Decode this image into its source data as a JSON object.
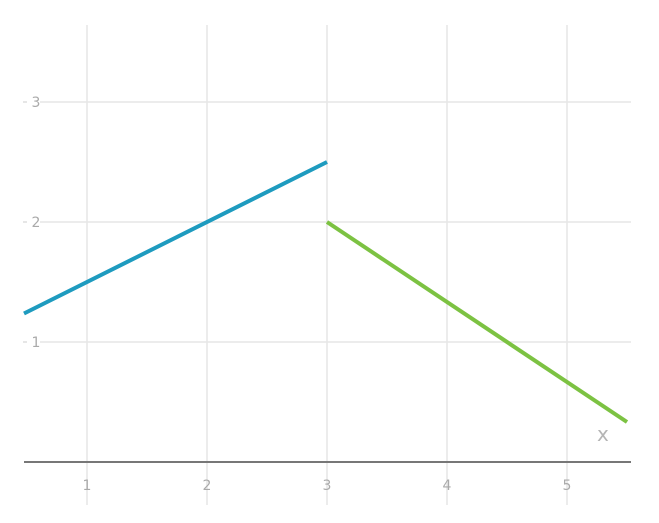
{
  "chart_data": {
    "type": "line",
    "xlabel": "x",
    "ylabel": "",
    "xlim": [
      0.475,
      5.5
    ],
    "ylim": [
      0,
      3.6
    ],
    "x_ticks": [
      "1",
      "2",
      "3",
      "4",
      "5"
    ],
    "y_ticks": [
      "1",
      "2",
      "3"
    ],
    "grid": true,
    "series": [
      {
        "color": "#1e9bbf",
        "points": [
          [
            0.475,
            1.2375
          ],
          [
            3,
            2.5
          ]
        ]
      },
      {
        "color": "#7cc242",
        "points": [
          [
            3,
            2
          ],
          [
            5.5,
            0.3333
          ]
        ]
      }
    ]
  }
}
